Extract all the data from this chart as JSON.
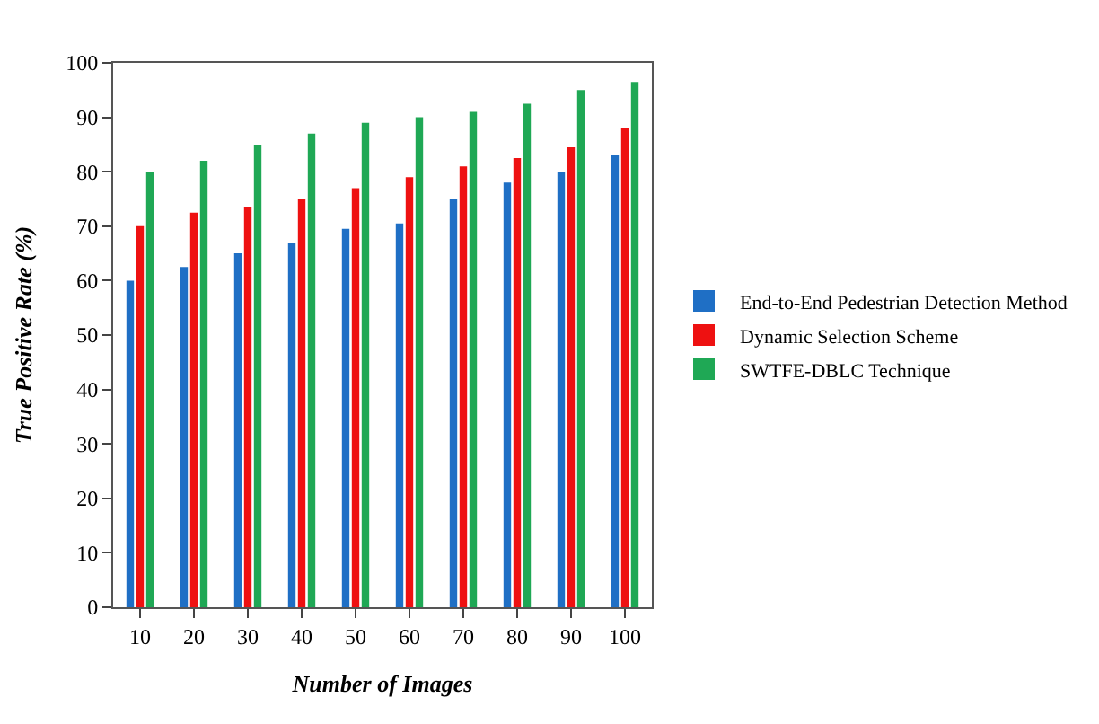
{
  "chart_data": {
    "type": "bar",
    "xlabel": "Number of Images",
    "ylabel": "True Positive Rate (%)",
    "categories": [
      "10",
      "20",
      "30",
      "40",
      "50",
      "60",
      "70",
      "80",
      "90",
      "100"
    ],
    "series": [
      {
        "name": "End-to-End Pedestrian Detection Method",
        "color": "#1f6fc5",
        "values": [
          60,
          62.5,
          65,
          67,
          69.5,
          70.5,
          75,
          78,
          80,
          83
        ]
      },
      {
        "name": "Dynamic Selection Scheme",
        "color": "#ee1111",
        "values": [
          70,
          72.5,
          73.5,
          75,
          77,
          79,
          81,
          82.5,
          84.5,
          88
        ]
      },
      {
        "name": "SWTFE-DBLC Technique",
        "color": "#1fa855",
        "values": [
          80,
          82,
          85,
          87,
          89,
          90,
          91,
          92.5,
          95,
          96.5
        ]
      }
    ],
    "ylim": [
      0,
      100
    ],
    "yticks": [
      0,
      10,
      20,
      30,
      40,
      50,
      60,
      70,
      80,
      90,
      100
    ],
    "grid": false,
    "legend": "right"
  }
}
